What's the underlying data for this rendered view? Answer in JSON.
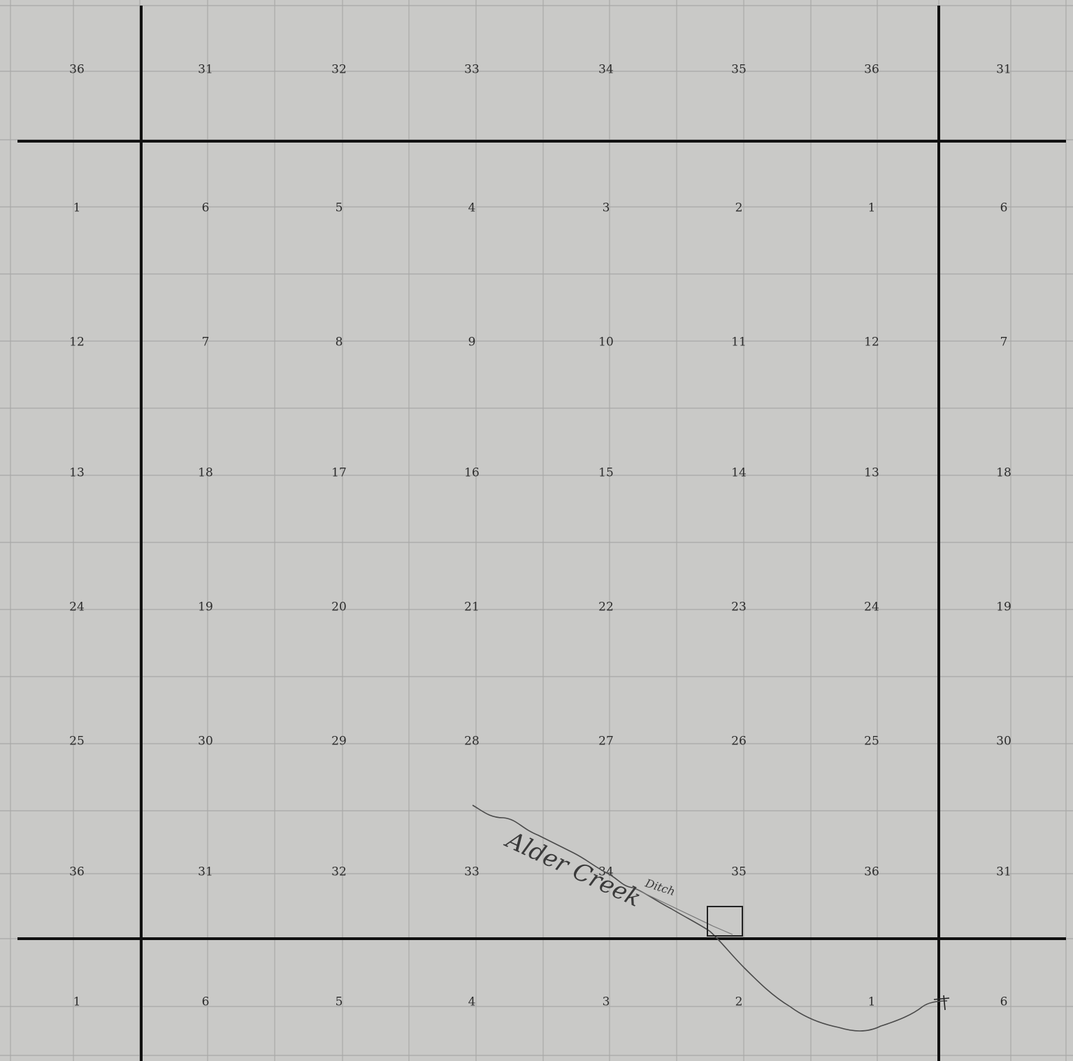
{
  "section_rows": [
    [
      "36",
      "31",
      "32",
      "33",
      "34",
      "35",
      "36",
      "31"
    ],
    [
      "1",
      "6",
      "5",
      "4",
      "3",
      "2",
      "1",
      "6"
    ],
    [
      "12",
      "7",
      "8",
      "9",
      "10",
      "11",
      "12",
      "7"
    ],
    [
      "13",
      "18",
      "17",
      "16",
      "15",
      "14",
      "13",
      "18"
    ],
    [
      "24",
      "19",
      "20",
      "21",
      "22",
      "23",
      "24",
      "19"
    ],
    [
      "25",
      "30",
      "29",
      "28",
      "27",
      "26",
      "25",
      "30"
    ],
    [
      "36",
      "31",
      "32",
      "33",
      "34",
      "35",
      "36",
      "31"
    ],
    [
      "1",
      "6",
      "5",
      "4",
      "3",
      "2",
      "1",
      "6"
    ]
  ],
  "annotations": {
    "creek_label": "Alder Creek",
    "ditch_label": "Ditch"
  },
  "colors": {
    "paper": "#c9c9c7",
    "grid_line": "#a9a9a7",
    "township_line": "#111111",
    "ink": "#444444"
  }
}
